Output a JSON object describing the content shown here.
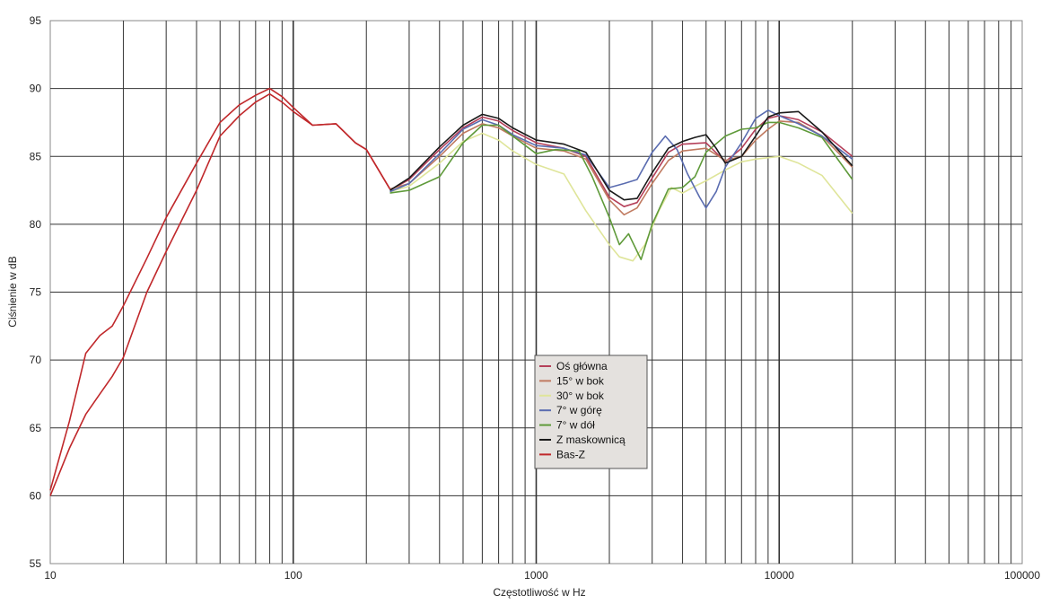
{
  "chart_data": {
    "type": "line",
    "xlabel": "Częstotliwość w Hz",
    "ylabel": "Ciśnienie w dB",
    "xscale": "log",
    "xlim": [
      10,
      100000
    ],
    "ylim": [
      55,
      95
    ],
    "x_tick_labels": [
      "10",
      "100",
      "1000",
      "10000",
      "100000"
    ],
    "y_tick_labels": [
      "55",
      "60",
      "65",
      "70",
      "75",
      "80",
      "85",
      "90",
      "95"
    ],
    "grid": true,
    "legend_position": "center",
    "series": [
      {
        "name": "Oś główna",
        "color": "#b5405a",
        "x": [
          250,
          300,
          400,
          500,
          600,
          700,
          800,
          1000,
          1300,
          1600,
          2000,
          2300,
          2600,
          3000,
          3500,
          4000,
          5000,
          6000,
          7000,
          8000,
          9000,
          10000,
          12000,
          15000,
          20000
        ],
        "y": [
          82.5,
          83.3,
          85.5,
          87.1,
          87.9,
          87.6,
          86.9,
          86.0,
          85.6,
          85.0,
          82.0,
          81.3,
          81.6,
          83.4,
          85.3,
          85.9,
          86.0,
          84.6,
          85.6,
          87.0,
          87.8,
          88.0,
          87.7,
          86.8,
          85.0
        ]
      },
      {
        "name": "15° w bok",
        "color": "#c07a60",
        "x": [
          250,
          300,
          400,
          500,
          600,
          700,
          800,
          1000,
          1300,
          1600,
          2000,
          2300,
          2600,
          3000,
          3500,
          4000,
          5000,
          6000,
          7000,
          8000,
          9000,
          10000,
          12000,
          15000,
          20000
        ],
        "y": [
          82.6,
          83.0,
          85.0,
          86.7,
          87.4,
          87.1,
          86.5,
          85.6,
          85.4,
          84.8,
          81.8,
          80.7,
          81.2,
          83.0,
          84.7,
          85.4,
          85.6,
          84.7,
          85.0,
          86.2,
          87.0,
          87.6,
          87.5,
          86.5,
          84.2
        ]
      },
      {
        "name": "30° w bok",
        "color": "#dfe59a",
        "x": [
          250,
          300,
          400,
          500,
          600,
          700,
          800,
          1000,
          1300,
          1600,
          2000,
          2200,
          2500,
          2800,
          3200,
          3600,
          4000,
          4500,
          5000,
          6000,
          7000,
          8000,
          10000,
          12000,
          15000,
          20000
        ],
        "y": [
          82.4,
          82.8,
          84.5,
          86.1,
          86.7,
          86.2,
          85.4,
          84.4,
          83.7,
          81.0,
          78.5,
          77.6,
          77.3,
          78.5,
          81.0,
          82.7,
          82.3,
          82.8,
          83.2,
          84.0,
          84.6,
          84.8,
          85.0,
          84.5,
          83.6,
          80.8
        ]
      },
      {
        "name": "7° w górę",
        "color": "#5a6cb0",
        "x": [
          250,
          300,
          400,
          500,
          600,
          700,
          800,
          1000,
          1300,
          1600,
          2000,
          2300,
          2600,
          3000,
          3400,
          3800,
          4200,
          4700,
          5000,
          5500,
          6000,
          7000,
          8000,
          9000,
          10000,
          12000,
          15000,
          20000
        ],
        "y": [
          82.4,
          83.0,
          85.2,
          87.0,
          87.7,
          87.3,
          86.6,
          85.8,
          85.6,
          85.1,
          82.7,
          83.0,
          83.3,
          85.3,
          86.5,
          85.5,
          83.7,
          82.0,
          81.2,
          82.4,
          84.2,
          86.0,
          87.8,
          88.4,
          88.0,
          87.4,
          86.5,
          84.8
        ]
      },
      {
        "name": "7° w dół",
        "color": "#5f9a3a",
        "x": [
          250,
          300,
          400,
          500,
          600,
          700,
          800,
          1000,
          1200,
          1500,
          1700,
          2000,
          2200,
          2400,
          2700,
          3000,
          3500,
          4000,
          4500,
          5000,
          6000,
          7000,
          8000,
          9000,
          10000,
          12000,
          15000,
          20000
        ],
        "y": [
          82.3,
          82.5,
          83.5,
          86.0,
          87.3,
          87.3,
          86.5,
          85.2,
          85.5,
          85.4,
          83.5,
          80.5,
          78.5,
          79.3,
          77.4,
          80.0,
          82.6,
          82.7,
          83.5,
          85.3,
          86.5,
          87.0,
          87.1,
          87.5,
          87.5,
          87.1,
          86.4,
          83.3
        ]
      },
      {
        "name": "Z maskownicą",
        "color": "#1a1a1a",
        "x": [
          250,
          300,
          400,
          500,
          600,
          700,
          800,
          1000,
          1300,
          1600,
          2000,
          2300,
          2600,
          3000,
          3500,
          4000,
          4500,
          5000,
          5500,
          6000,
          7000,
          8000,
          9000,
          10000,
          12000,
          15000,
          20000
        ],
        "y": [
          82.5,
          83.4,
          85.7,
          87.3,
          88.1,
          87.8,
          87.1,
          86.2,
          85.9,
          85.3,
          82.5,
          81.8,
          81.9,
          83.8,
          85.6,
          86.1,
          86.4,
          86.6,
          85.6,
          84.5,
          85.0,
          86.5,
          87.9,
          88.2,
          88.3,
          86.8,
          84.3
        ]
      },
      {
        "name": "Bas-Z",
        "color": "#c0282b",
        "x": [
          10,
          12,
          14,
          16,
          18,
          20,
          25,
          30,
          40,
          50,
          60,
          70,
          80,
          90,
          100,
          120,
          150,
          180,
          200,
          250
        ],
        "y": [
          60.0,
          63.5,
          66.0,
          67.5,
          68.8,
          70.2,
          75.0,
          78.0,
          82.5,
          86.5,
          88.0,
          89.0,
          89.6,
          89.0,
          88.3,
          87.3,
          87.4,
          86.0,
          85.5,
          82.6
        ]
      },
      {
        "name": "",
        "color": "#c0282b",
        "x": [
          10,
          12,
          14,
          16,
          18,
          20,
          25,
          30,
          40,
          50,
          60,
          70,
          80,
          90,
          100,
          120,
          150,
          180,
          200,
          250
        ],
        "y": [
          60.4,
          65.5,
          70.5,
          71.8,
          72.5,
          74.0,
          77.5,
          80.5,
          84.5,
          87.5,
          88.8,
          89.5,
          90.0,
          89.4,
          88.6,
          87.3,
          87.4,
          86.0,
          85.5,
          82.6
        ]
      }
    ]
  }
}
